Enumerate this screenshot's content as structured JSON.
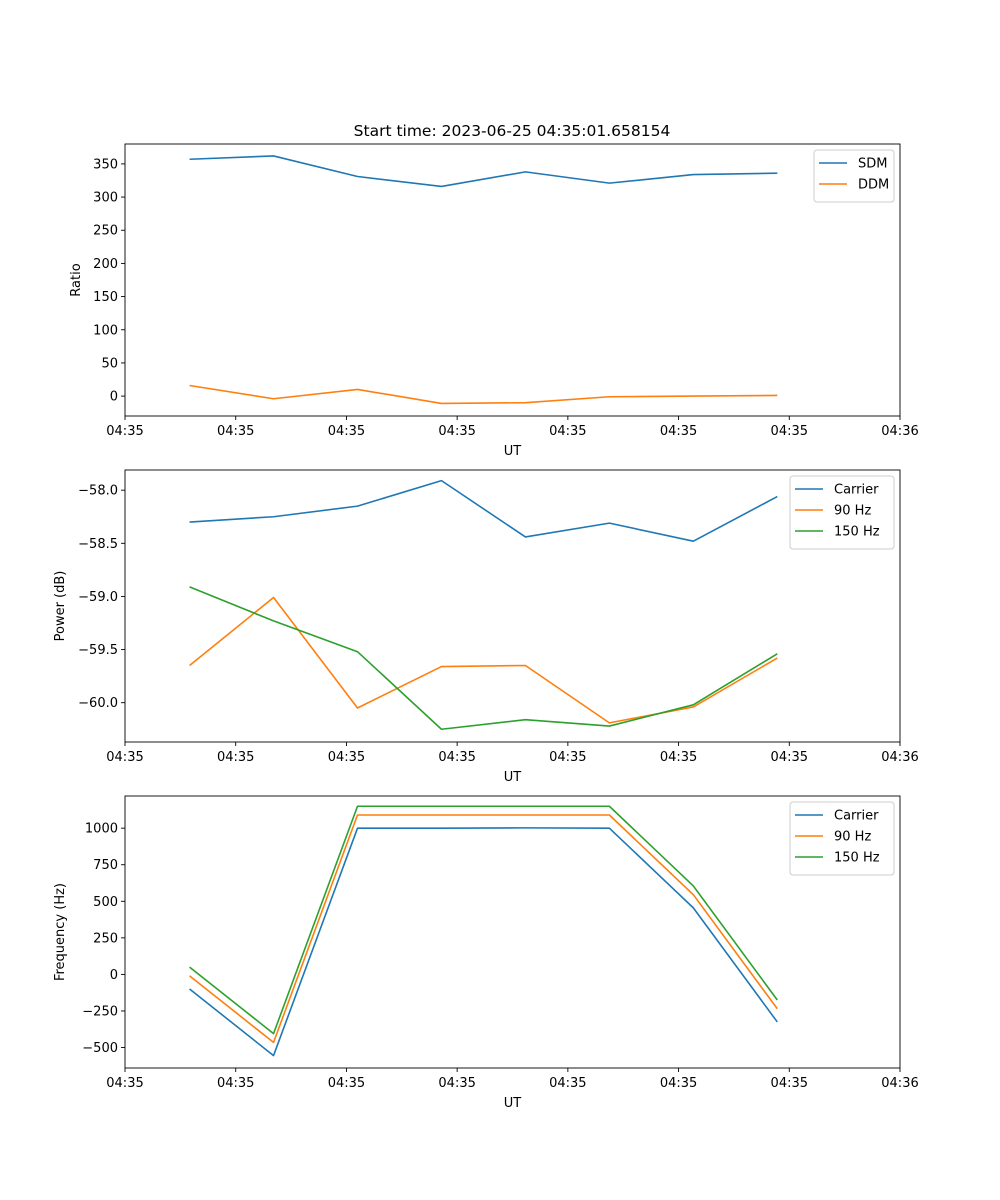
{
  "figure": {
    "title": "Start time: 2023-06-25 04:35:01.658154"
  },
  "chart_data": [
    {
      "type": "line",
      "title": "Start time: 2023-06-25 04:35:01.658154",
      "xlabel": "UT",
      "ylabel": "Ratio",
      "x_tick_labels": [
        "04:35",
        "04:35",
        "04:35",
        "04:35",
        "04:35",
        "04:35",
        "04:35",
        "04:36"
      ],
      "xlim": [
        0,
        6
      ],
      "x": [
        0.5,
        1.15,
        1.8,
        2.45,
        3.1,
        3.75,
        4.4,
        5.05
      ],
      "ylim": [
        -30,
        380
      ],
      "yticks": [
        0,
        50,
        100,
        150,
        200,
        250,
        300,
        350
      ],
      "legend": "top-right",
      "grid": false,
      "series": [
        {
          "name": "SDM",
          "color": "#1f77b4",
          "values": [
            357,
            362,
            331,
            316,
            338,
            321,
            334,
            336
          ]
        },
        {
          "name": "DDM",
          "color": "#ff7f0e",
          "values": [
            16,
            -4,
            10,
            -11,
            -10,
            -1,
            0,
            1
          ]
        }
      ]
    },
    {
      "type": "line",
      "xlabel": "UT",
      "ylabel": "Power (dB)",
      "x_tick_labels": [
        "04:35",
        "04:35",
        "04:35",
        "04:35",
        "04:35",
        "04:35",
        "04:35",
        "04:36"
      ],
      "xlim": [
        0,
        6
      ],
      "x": [
        0.5,
        1.15,
        1.8,
        2.45,
        3.1,
        3.75,
        4.4,
        5.05
      ],
      "ylim": [
        -60.37,
        -57.81
      ],
      "yticks": [
        -60.0,
        -59.5,
        -59.0,
        -58.5,
        -58.0
      ],
      "ytick_labels": [
        "−60.0",
        "−59.5",
        "−59.0",
        "−58.5",
        "−58.0"
      ],
      "legend": "top-right",
      "grid": false,
      "series": [
        {
          "name": "Carrier",
          "color": "#1f77b4",
          "values": [
            -58.3,
            -58.25,
            -58.15,
            -57.91,
            -58.44,
            -58.31,
            -58.48,
            -58.06
          ]
        },
        {
          "name": "90 Hz",
          "color": "#ff7f0e",
          "values": [
            -59.65,
            -59.01,
            -60.05,
            -59.66,
            -59.65,
            -60.19,
            -60.04,
            -59.58
          ]
        },
        {
          "name": "150 Hz",
          "color": "#2ca02c",
          "values": [
            -58.91,
            -59.23,
            -59.52,
            -60.25,
            -60.16,
            -60.22,
            -60.02,
            -59.54
          ]
        }
      ]
    },
    {
      "type": "line",
      "xlabel": "UT",
      "ylabel": "Frequency (Hz)",
      "x_tick_labels": [
        "04:35",
        "04:35",
        "04:35",
        "04:35",
        "04:35",
        "04:35",
        "04:35",
        "04:36"
      ],
      "xlim": [
        0,
        6
      ],
      "x": [
        0.5,
        1.15,
        1.8,
        2.45,
        3.1,
        3.75,
        4.4,
        5.05
      ],
      "ylim": [
        -640,
        1220
      ],
      "yticks": [
        -500,
        -250,
        0,
        250,
        500,
        750,
        1000
      ],
      "ytick_labels": [
        "−500",
        "−250",
        "0",
        "250",
        "500",
        "750",
        "1000"
      ],
      "legend": "top-right",
      "grid": false,
      "series": [
        {
          "name": "Carrier",
          "color": "#1f77b4",
          "values": [
            -100,
            -555,
            1000,
            1000,
            1002,
            1000,
            455,
            -325
          ]
        },
        {
          "name": "90 Hz",
          "color": "#ff7f0e",
          "values": [
            -10,
            -465,
            1090,
            1090,
            1090,
            1090,
            545,
            -235
          ]
        },
        {
          "name": "150 Hz",
          "color": "#2ca02c",
          "values": [
            50,
            -405,
            1150,
            1150,
            1150,
            1150,
            605,
            -175
          ]
        }
      ]
    }
  ]
}
